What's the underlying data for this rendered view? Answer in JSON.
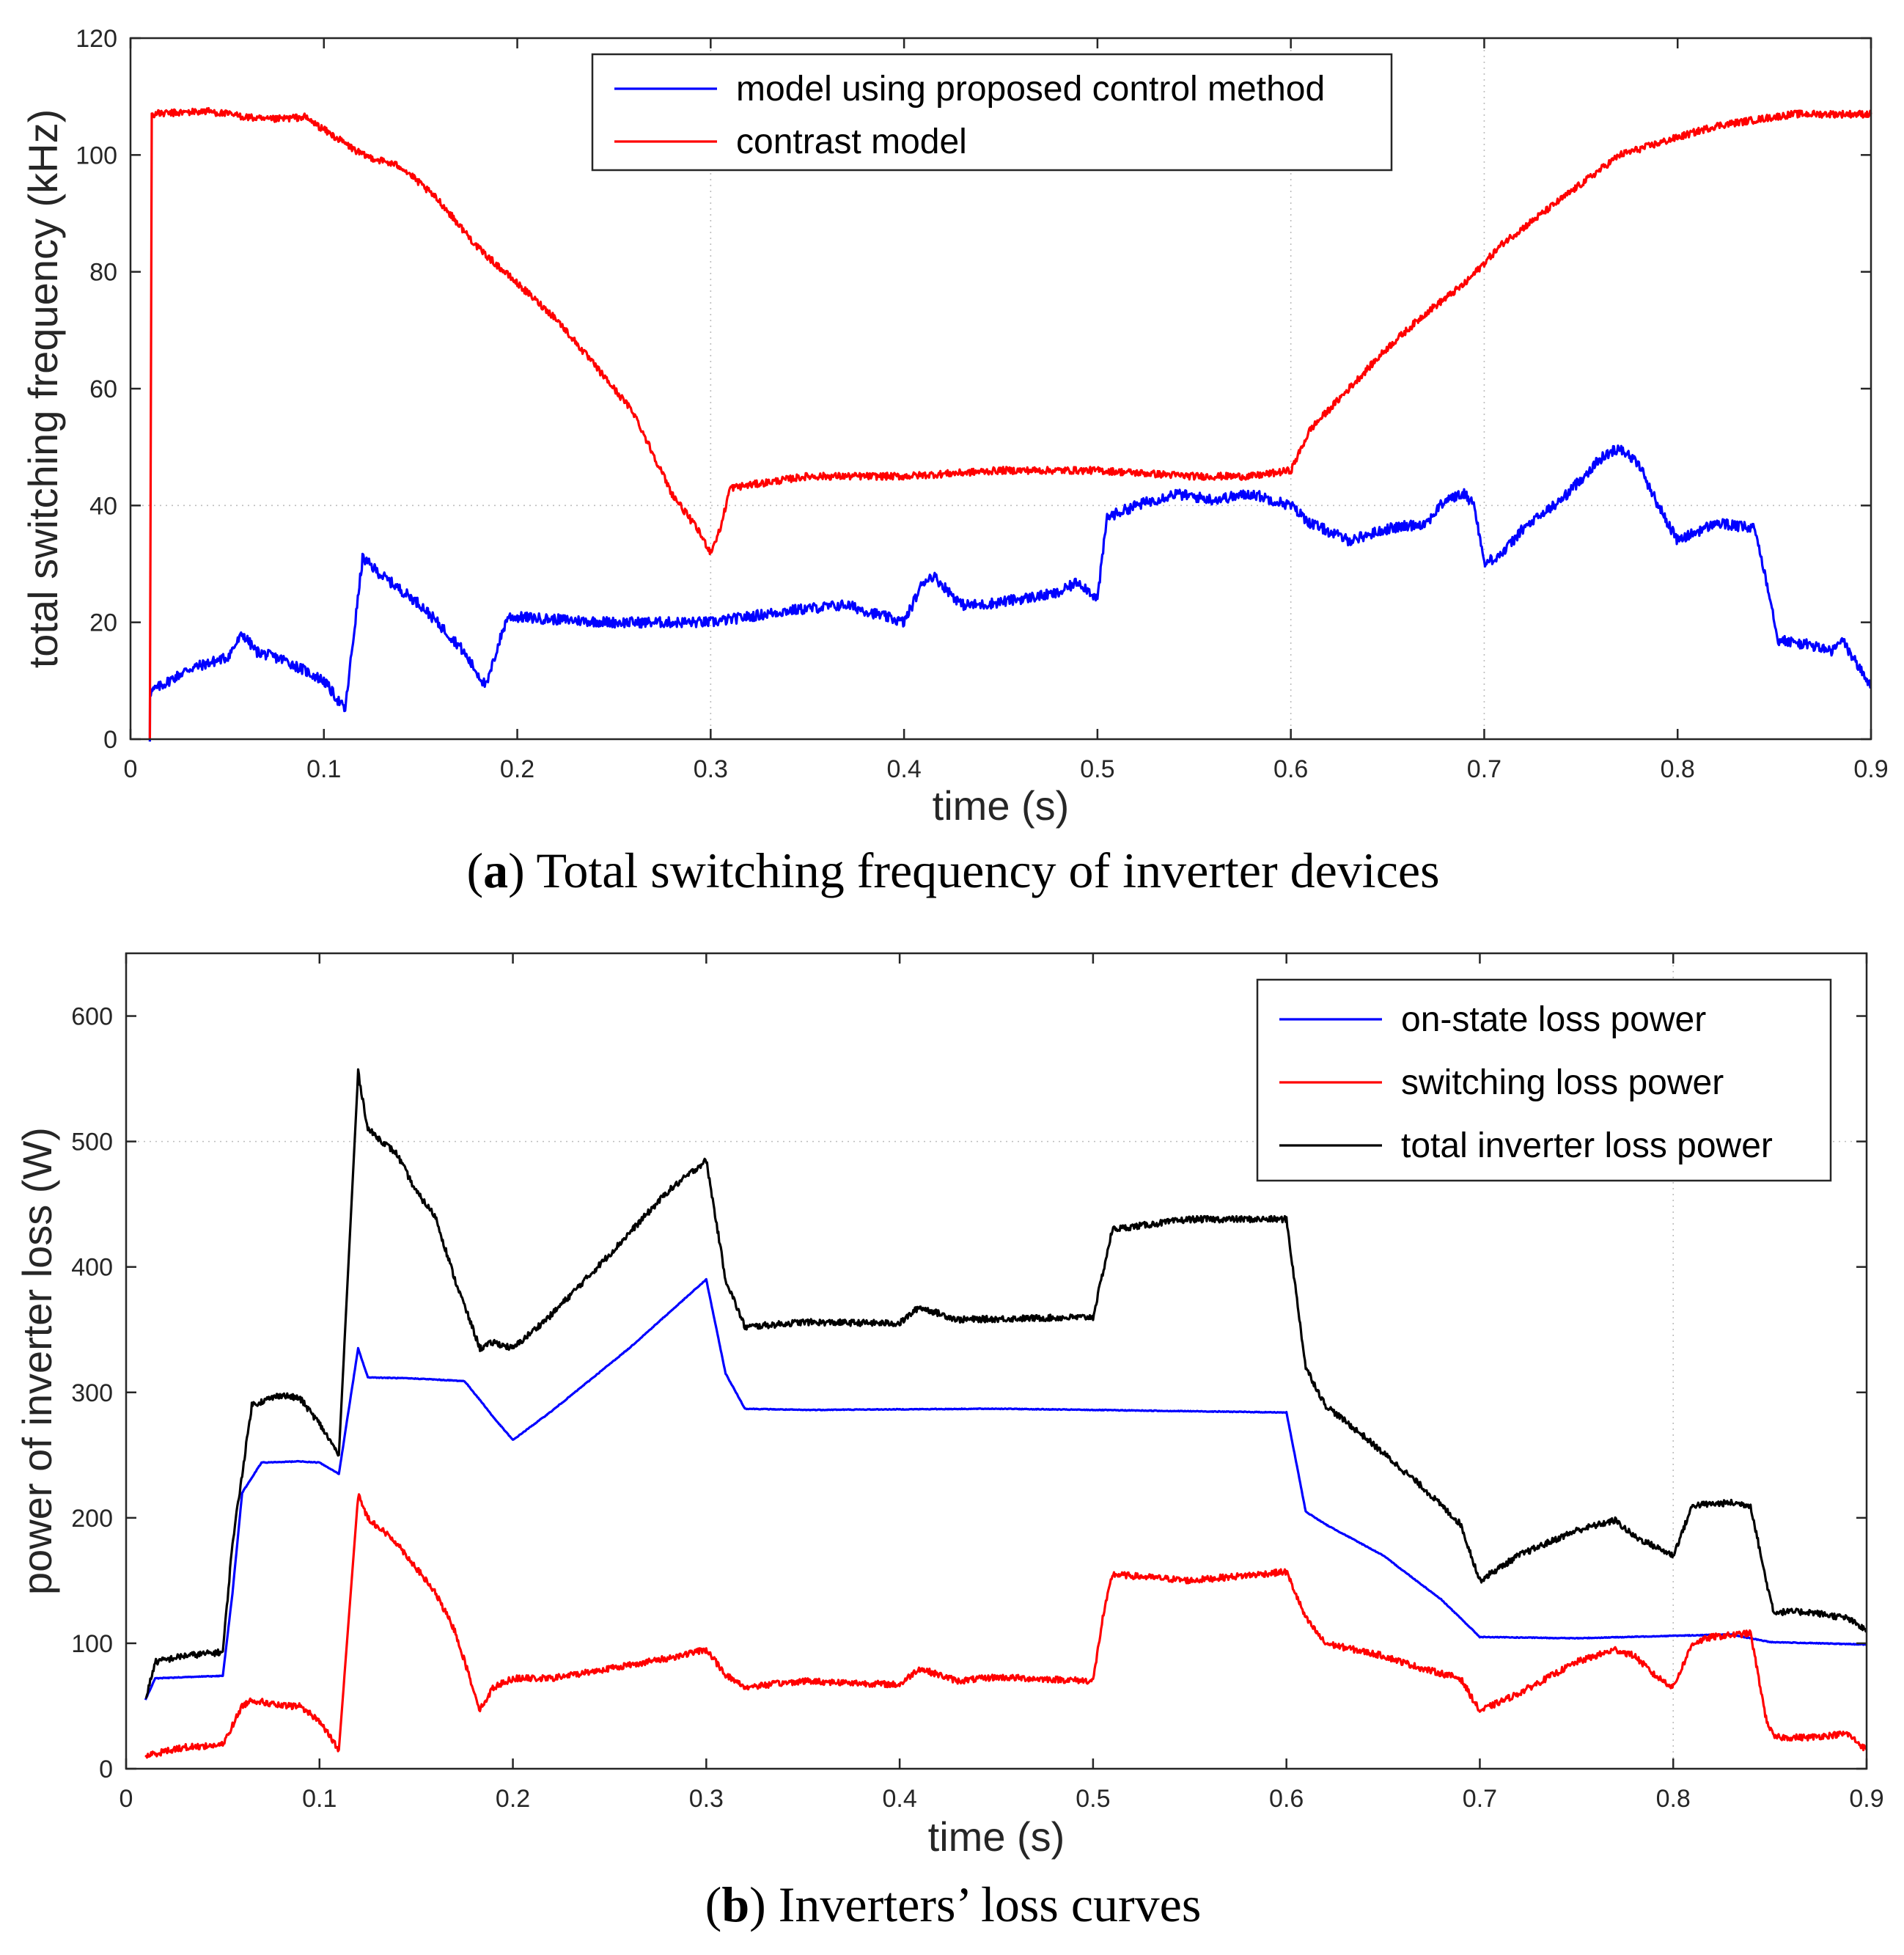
{
  "colors": {
    "blue": "#0000ff",
    "red": "#ff0000",
    "black": "#000000"
  },
  "captions": [
    {
      "prefix": "(",
      "bold": "a",
      "suffix": ") Total switching frequency of inverter devices"
    },
    {
      "prefix": "(",
      "bold": "b",
      "suffix": ") Inverters’ loss curves"
    }
  ],
  "chart_data": [
    {
      "type": "line",
      "xlabel": "time (s)",
      "ylabel": "total switching frequency (kHz)",
      "xlim": [
        0,
        0.9
      ],
      "ylim": [
        0,
        120
      ],
      "xticks": [
        0,
        0.1,
        0.2,
        0.3,
        0.4,
        0.5,
        0.6,
        0.7,
        0.8,
        0.9
      ],
      "xtick_labels": [
        "0",
        "0.1",
        "0.2",
        "0.3",
        "0.4",
        "0.5",
        "0.6",
        "0.7",
        "0.8",
        "0.9"
      ],
      "yticks": [
        0,
        20,
        40,
        60,
        80,
        100,
        120
      ],
      "ytick_labels": [
        "0",
        "20",
        "40",
        "60",
        "80",
        "100",
        "120"
      ],
      "grid_x": [
        0.3,
        0.6,
        0.7
      ],
      "grid_y": [
        40
      ],
      "legend_position": "top-center",
      "series": [
        {
          "name": "model using proposed control method",
          "color": "#0000ff",
          "noise": 0.9,
          "points": [
            [
              0.01,
              0
            ],
            [
              0.0101,
              8
            ],
            [
              0.02,
              10
            ],
            [
              0.03,
              12
            ],
            [
              0.04,
              13
            ],
            [
              0.05,
              14
            ],
            [
              0.058,
              18
            ],
            [
              0.065,
              15
            ],
            [
              0.08,
              13.5
            ],
            [
              0.1,
              10
            ],
            [
              0.111,
              5
            ],
            [
              0.12,
              31
            ],
            [
              0.13,
              28
            ],
            [
              0.15,
              23
            ],
            [
              0.17,
              16
            ],
            [
              0.184,
              9
            ],
            [
              0.19,
              16
            ],
            [
              0.195,
              21
            ],
            [
              0.22,
              20.5
            ],
            [
              0.25,
              20
            ],
            [
              0.28,
              20
            ],
            [
              0.3,
              20
            ],
            [
              0.32,
              21
            ],
            [
              0.34,
              22
            ],
            [
              0.37,
              23
            ],
            [
              0.39,
              21
            ],
            [
              0.4,
              20
            ],
            [
              0.41,
              27
            ],
            [
              0.415,
              28
            ],
            [
              0.43,
              23
            ],
            [
              0.44,
              23
            ],
            [
              0.46,
              24
            ],
            [
              0.48,
              25
            ],
            [
              0.49,
              27
            ],
            [
              0.497,
              25
            ],
            [
              0.5,
              24
            ],
            [
              0.505,
              38
            ],
            [
              0.52,
              40
            ],
            [
              0.54,
              42
            ],
            [
              0.56,
              41
            ],
            [
              0.58,
              42
            ],
            [
              0.6,
              40
            ],
            [
              0.61,
              37
            ],
            [
              0.63,
              34
            ],
            [
              0.65,
              36
            ],
            [
              0.67,
              37
            ],
            [
              0.68,
              41
            ],
            [
              0.69,
              42
            ],
            [
              0.695,
              40
            ],
            [
              0.7,
              30
            ],
            [
              0.71,
              32
            ],
            [
              0.72,
              36
            ],
            [
              0.74,
              41
            ],
            [
              0.76,
              48
            ],
            [
              0.77,
              50
            ],
            [
              0.78,
              47
            ],
            [
              0.79,
              40
            ],
            [
              0.8,
              34
            ],
            [
              0.82,
              37
            ],
            [
              0.84,
              36
            ],
            [
              0.848,
              24
            ],
            [
              0.852,
              17
            ],
            [
              0.87,
              16
            ],
            [
              0.88,
              15
            ],
            [
              0.885,
              17
            ],
            [
              0.9,
              9
            ]
          ]
        },
        {
          "name": "contrast model",
          "color": "#ff0000",
          "noise": 0.6,
          "points": [
            [
              0.01,
              0
            ],
            [
              0.011,
              107
            ],
            [
              0.04,
              107.5
            ],
            [
              0.07,
              106
            ],
            [
              0.09,
              106.5
            ],
            [
              0.12,
              100
            ],
            [
              0.14,
              98
            ],
            [
              0.16,
              92
            ],
            [
              0.18,
              84
            ],
            [
              0.2,
              78
            ],
            [
              0.22,
              72
            ],
            [
              0.24,
              64
            ],
            [
              0.26,
              56
            ],
            [
              0.28,
              42
            ],
            [
              0.293,
              36
            ],
            [
              0.3,
              32
            ],
            [
              0.305,
              36
            ],
            [
              0.31,
              43
            ],
            [
              0.33,
              44
            ],
            [
              0.35,
              45
            ],
            [
              0.4,
              45
            ],
            [
              0.45,
              46
            ],
            [
              0.5,
              46
            ],
            [
              0.55,
              45
            ],
            [
              0.58,
              45
            ],
            [
              0.6,
              46
            ],
            [
              0.61,
              53
            ],
            [
              0.63,
              60
            ],
            [
              0.65,
              67
            ],
            [
              0.67,
              73
            ],
            [
              0.69,
              78
            ],
            [
              0.71,
              85
            ],
            [
              0.73,
              90
            ],
            [
              0.75,
              95
            ],
            [
              0.77,
              100
            ],
            [
              0.79,
              102
            ],
            [
              0.8,
              103
            ],
            [
              0.82,
              105
            ],
            [
              0.84,
              106
            ],
            [
              0.86,
              107
            ],
            [
              0.9,
              107
            ]
          ]
        }
      ]
    },
    {
      "type": "line",
      "xlabel": "time (s)",
      "ylabel": "power of inverter loss (W)",
      "xlim": [
        0,
        0.9
      ],
      "ylim": [
        0,
        650
      ],
      "xticks": [
        0,
        0.1,
        0.2,
        0.3,
        0.4,
        0.5,
        0.6,
        0.7,
        0.8,
        0.9
      ],
      "xtick_labels": [
        "0",
        "0.1",
        "0.2",
        "0.3",
        "0.4",
        "0.5",
        "0.6",
        "0.7",
        "0.8",
        "0.9"
      ],
      "yticks": [
        0,
        100,
        200,
        300,
        400,
        500,
        600
      ],
      "ytick_labels": [
        "0",
        "100",
        "200",
        "300",
        "400",
        "500",
        "600"
      ],
      "grid_x": [
        0.8
      ],
      "grid_y": [
        500
      ],
      "legend_position": "top-right",
      "series": [
        {
          "name": "on-state loss power",
          "color": "#0000ff",
          "noise": 0.3,
          "points": [
            [
              0.01,
              55
            ],
            [
              0.015,
              72
            ],
            [
              0.03,
              73
            ],
            [
              0.05,
              74
            ],
            [
              0.055,
              140
            ],
            [
              0.06,
              220
            ],
            [
              0.07,
              244
            ],
            [
              0.09,
              245
            ],
            [
              0.1,
              244
            ],
            [
              0.11,
              235
            ],
            [
              0.12,
              335
            ],
            [
              0.125,
              312
            ],
            [
              0.15,
              311
            ],
            [
              0.175,
              309
            ],
            [
              0.185,
              290
            ],
            [
              0.19,
              280
            ],
            [
              0.2,
              262
            ],
            [
              0.22,
              285
            ],
            [
              0.26,
              335
            ],
            [
              0.3,
              390
            ],
            [
              0.31,
              315
            ],
            [
              0.32,
              287
            ],
            [
              0.35,
              286
            ],
            [
              0.45,
              287
            ],
            [
              0.55,
              285
            ],
            [
              0.6,
              284
            ],
            [
              0.61,
              205
            ],
            [
              0.62,
              195
            ],
            [
              0.65,
              170
            ],
            [
              0.68,
              135
            ],
            [
              0.7,
              105
            ],
            [
              0.75,
              104
            ],
            [
              0.8,
              106
            ],
            [
              0.83,
              107
            ],
            [
              0.85,
              101
            ],
            [
              0.9,
              99
            ]
          ]
        },
        {
          "name": "switching loss power",
          "color": "#ff0000",
          "noise": 2.5,
          "points": [
            [
              0.01,
              10
            ],
            [
              0.02,
              14
            ],
            [
              0.03,
              17
            ],
            [
              0.05,
              19
            ],
            [
              0.06,
              50
            ],
            [
              0.065,
              55
            ],
            [
              0.08,
              50
            ],
            [
              0.09,
              50
            ],
            [
              0.1,
              38
            ],
            [
              0.11,
              15
            ],
            [
              0.12,
              218
            ],
            [
              0.125,
              200
            ],
            [
              0.14,
              180
            ],
            [
              0.15,
              160
            ],
            [
              0.16,
              140
            ],
            [
              0.17,
              110
            ],
            [
              0.183,
              47
            ],
            [
              0.19,
              65
            ],
            [
              0.2,
              72
            ],
            [
              0.22,
              72
            ],
            [
              0.25,
              80
            ],
            [
              0.28,
              88
            ],
            [
              0.3,
              95
            ],
            [
              0.31,
              75
            ],
            [
              0.32,
              65
            ],
            [
              0.35,
              70
            ],
            [
              0.4,
              67
            ],
            [
              0.41,
              80
            ],
            [
              0.43,
              70
            ],
            [
              0.45,
              73
            ],
            [
              0.5,
              70
            ],
            [
              0.505,
              120
            ],
            [
              0.51,
              155
            ],
            [
              0.55,
              150
            ],
            [
              0.6,
              157
            ],
            [
              0.61,
              120
            ],
            [
              0.62,
              100
            ],
            [
              0.65,
              90
            ],
            [
              0.67,
              80
            ],
            [
              0.69,
              72
            ],
            [
              0.7,
              46
            ],
            [
              0.72,
              60
            ],
            [
              0.75,
              85
            ],
            [
              0.77,
              95
            ],
            [
              0.78,
              90
            ],
            [
              0.79,
              75
            ],
            [
              0.8,
              65
            ],
            [
              0.81,
              100
            ],
            [
              0.82,
              105
            ],
            [
              0.84,
              108
            ],
            [
              0.848,
              40
            ],
            [
              0.852,
              25
            ],
            [
              0.87,
              25
            ],
            [
              0.89,
              28
            ],
            [
              0.9,
              15
            ]
          ]
        },
        {
          "name": "total inverter loss power",
          "color": "#000000",
          "noise": 2.5,
          "points": [
            [
              0.01,
              55
            ],
            [
              0.015,
              85
            ],
            [
              0.03,
              90
            ],
            [
              0.05,
              93
            ],
            [
              0.055,
              180
            ],
            [
              0.065,
              290
            ],
            [
              0.08,
              298
            ],
            [
              0.09,
              295
            ],
            [
              0.1,
              275
            ],
            [
              0.11,
              250
            ],
            [
              0.12,
              555
            ],
            [
              0.125,
              510
            ],
            [
              0.14,
              490
            ],
            [
              0.15,
              460
            ],
            [
              0.16,
              440
            ],
            [
              0.17,
              390
            ],
            [
              0.183,
              335
            ],
            [
              0.19,
              340
            ],
            [
              0.2,
              335
            ],
            [
              0.22,
              362
            ],
            [
              0.25,
              410
            ],
            [
              0.28,
              460
            ],
            [
              0.3,
              485
            ],
            [
              0.31,
              390
            ],
            [
              0.32,
              352
            ],
            [
              0.35,
              356
            ],
            [
              0.4,
              355
            ],
            [
              0.41,
              368
            ],
            [
              0.43,
              358
            ],
            [
              0.5,
              360
            ],
            [
              0.51,
              430
            ],
            [
              0.55,
              438
            ],
            [
              0.6,
              438
            ],
            [
              0.61,
              320
            ],
            [
              0.62,
              290
            ],
            [
              0.64,
              265
            ],
            [
              0.67,
              225
            ],
            [
              0.69,
              195
            ],
            [
              0.7,
              150
            ],
            [
              0.72,
              170
            ],
            [
              0.75,
              190
            ],
            [
              0.77,
              198
            ],
            [
              0.78,
              185
            ],
            [
              0.8,
              170
            ],
            [
              0.81,
              210
            ],
            [
              0.83,
              212
            ],
            [
              0.84,
              210
            ],
            [
              0.848,
              150
            ],
            [
              0.852,
              125
            ],
            [
              0.87,
              125
            ],
            [
              0.89,
              120
            ],
            [
              0.9,
              110
            ]
          ]
        }
      ]
    }
  ]
}
